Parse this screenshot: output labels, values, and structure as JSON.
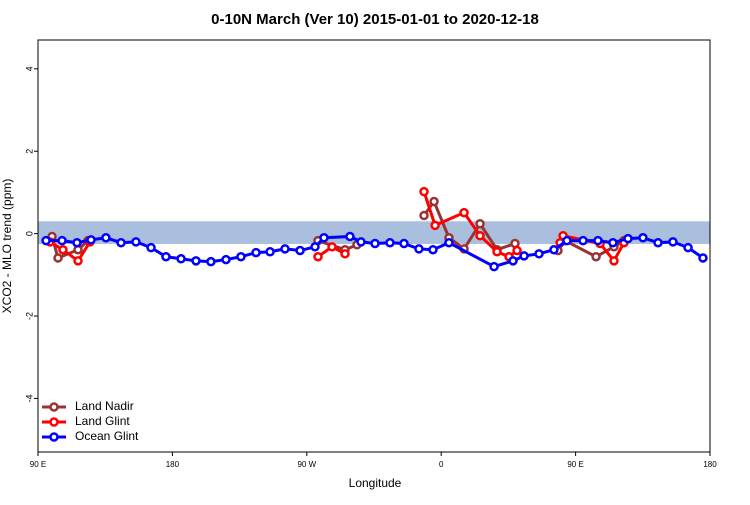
{
  "chart_data": {
    "type": "line",
    "title": "0-10N March (Ver 10)   2015-01-01 to 2020-12-18",
    "x_label": "Longitude",
    "y_label": "XCO2 - MLO trend (ppm)",
    "xlim": [
      90,
      540
    ],
    "ylim": [
      -5.3,
      4.7
    ],
    "xticks": [
      {
        "value": 90,
        "label": "90 E"
      },
      180,
      {
        "value": 270,
        "label": "90 W"
      },
      {
        "value": 360,
        "label": "0"
      },
      {
        "value": 450,
        "label": "90 E"
      },
      180.0
    ],
    "yticks": [
      -4,
      -2,
      0,
      2,
      4
    ],
    "reference_band": {
      "ymin": -0.25,
      "ymax": 0.3,
      "color": "#a9bfdd"
    },
    "legend": "bottom-left",
    "series": [
      {
        "name": "Land Nadir",
        "color": "#993333",
        "x": [
          99.4,
          103.4,
          116.8,
          123.5,
          200,
          277.5,
          295.6,
          303.6,
          330,
          348.5,
          355.2,
          365.2,
          375.3,
          386,
          397.4,
          409.4,
          430,
          438.2,
          442.9,
          463.7,
          475.7,
          482.4
        ],
        "values": [
          -0.07,
          -0.59,
          -0.39,
          -0.17,
          null,
          -0.17,
          -0.39,
          -0.27,
          null,
          0.44,
          0.78,
          -0.1,
          -0.37,
          0.24,
          -0.39,
          -0.24,
          null,
          -0.41,
          -0.17,
          -0.56,
          -0.32,
          -0.17
        ]
      },
      {
        "name": "Land Glint",
        "color": "#ff0000",
        "x": [
          98,
          106.7,
          116.8,
          124.8,
          200,
          277.5,
          286.9,
          295.6,
          330,
          348.5,
          355.9,
          375.3,
          386,
          397.4,
          405.4,
          410.8,
          430,
          439.6,
          441.6,
          466.4,
          475.7,
          482.4
        ],
        "values": [
          -0.2,
          -0.39,
          -0.66,
          -0.2,
          null,
          -0.56,
          -0.32,
          -0.49,
          null,
          1.02,
          0.2,
          0.51,
          -0.05,
          -0.44,
          -0.56,
          -0.41,
          null,
          -0.22,
          -0.05,
          -0.24,
          -0.66,
          -0.22
        ]
      },
      {
        "name": "Ocean Glint",
        "color": "#0000ff",
        "x": [
          95.4,
          106.1,
          116.1,
          125.5,
          135.5,
          145.6,
          155.6,
          165.7,
          175.7,
          185.8,
          195.8,
          205.8,
          215.9,
          225.9,
          236,
          245.4,
          255.4,
          265.5,
          275.5,
          281.5,
          298.9,
          306.3,
          315.7,
          325.7,
          335.1,
          345.1,
          354.5,
          365.2,
          395.4,
          408.1,
          415.5,
          425.5,
          435.5,
          444.2,
          455,
          465,
          475,
          485.1,
          495.1,
          505.2,
          515.2,
          525.3,
          535.3
        ],
        "values": [
          -0.17,
          -0.17,
          -0.22,
          -0.15,
          -0.1,
          -0.22,
          -0.2,
          -0.34,
          -0.56,
          -0.61,
          -0.66,
          -0.68,
          -0.63,
          -0.56,
          -0.46,
          -0.44,
          -0.37,
          -0.41,
          -0.32,
          -0.1,
          -0.07,
          -0.2,
          -0.24,
          -0.22,
          -0.24,
          -0.37,
          -0.39,
          -0.22,
          -0.8,
          -0.66,
          -0.54,
          -0.49,
          -0.39,
          -0.17,
          -0.17,
          -0.17,
          -0.22,
          -0.12,
          -0.1,
          -0.22,
          -0.2,
          -0.34,
          -0.59
        ]
      }
    ]
  }
}
